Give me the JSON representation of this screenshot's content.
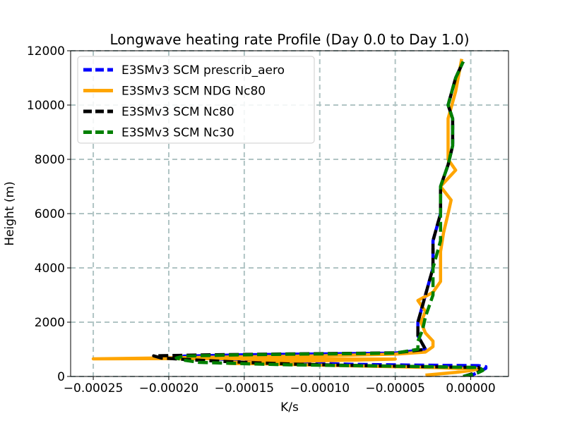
{
  "chart_data": {
    "type": "line",
    "title": "Longwave heating rate Profile (Day 0.0 to Day 1.0)",
    "xlabel": "K/s",
    "ylabel": "Height (m)",
    "xlim": [
      -0.000265,
      2.5e-05
    ],
    "ylim": [
      0,
      12000
    ],
    "xticks": [
      {
        "value": -0.00025,
        "label": "−0.00025"
      },
      {
        "value": -0.0002,
        "label": "−0.00020"
      },
      {
        "value": -0.00015,
        "label": "−0.00015"
      },
      {
        "value": -0.0001,
        "label": "−0.00010"
      },
      {
        "value": -5e-05,
        "label": "−0.00005"
      },
      {
        "value": 0.0,
        "label": "0.00000"
      }
    ],
    "yticks": [
      {
        "value": 0,
        "label": "0"
      },
      {
        "value": 2000,
        "label": "2000"
      },
      {
        "value": 4000,
        "label": "4000"
      },
      {
        "value": 6000,
        "label": "6000"
      },
      {
        "value": 8000,
        "label": "8000"
      },
      {
        "value": 10000,
        "label": "10000"
      },
      {
        "value": 12000,
        "label": "12000"
      }
    ],
    "grid": true,
    "legend_position": "top-left",
    "series": [
      {
        "name": "E3SMv3 SCM prescrib_aero",
        "color": "#0000ff",
        "dash": "dashed",
        "x": [
          -3e-06,
          2e-06,
          5e-06,
          8e-06,
          1e-05,
          1e-05,
          5e-06,
          -4e-05,
          -8e-05,
          -0.00012,
          -0.00015,
          -0.00017,
          -0.00019,
          -0.00019,
          -0.00015,
          -0.0001,
          -5e-05,
          -3e-05,
          -3.5e-05,
          -3.5e-05,
          -3e-05,
          -2.5e-05,
          -2.5e-05,
          -2e-05,
          -2e-05,
          -2e-05,
          -1.5e-05,
          -1.2e-05,
          -1.2e-05,
          -1.5e-05,
          -1e-05,
          -5e-06
        ],
        "y": [
          0,
          80,
          160,
          240,
          300,
          360,
          400,
          420,
          450,
          520,
          600,
          650,
          700,
          750,
          800,
          830,
          860,
          1000,
          1500,
          2000,
          3000,
          4000,
          5000,
          6000,
          6500,
          7000,
          7800,
          8500,
          9500,
          10000,
          11000,
          11600
        ]
      },
      {
        "name": "E3SMv3 SCM NDG Nc80",
        "color": "#ffa500",
        "dash": "solid",
        "x": [
          -3e-05,
          -1e-05,
          0.0,
          5e-06,
          -2e-05,
          -6e-05,
          -0.00011,
          -0.00014,
          -0.00016,
          -0.00016,
          -0.00012,
          -8e-05,
          -5e-05,
          -0.00018,
          -0.00025,
          -0.0001,
          -5e-05,
          -3e-05,
          -2.5e-05,
          -2.5e-05,
          -3e-05,
          -3.3e-05,
          -3e-05,
          -3.5e-05,
          -2.5e-05,
          -2e-05,
          -2e-05,
          -2e-05,
          -1.8e-05,
          -1.5e-05,
          -1.3e-05,
          -2e-05,
          -1e-05,
          -1.5e-05,
          -1.5e-05,
          -1.5e-05,
          -1e-05,
          -6e-06
        ],
        "y": [
          50,
          150,
          220,
          270,
          320,
          370,
          430,
          470,
          480,
          520,
          560,
          600,
          640,
          660,
          650,
          760,
          820,
          900,
          1100,
          1300,
          1600,
          2000,
          2400,
          2800,
          3100,
          3500,
          4200,
          4600,
          5300,
          6000,
          6500,
          7000,
          7600,
          8000,
          8500,
          9500,
          10500,
          11700
        ]
      },
      {
        "name": "E3SMv3 SCM Nc80",
        "color": "#000000",
        "dash": "dashed",
        "x": [
          -5e-06,
          0.0,
          5e-06,
          7e-06,
          5e-06,
          -5e-05,
          -9e-05,
          -0.00012,
          -0.00015,
          -0.00018,
          -0.000205,
          -0.00021,
          -0.00017,
          -0.00012,
          -8e-05,
          -5e-05,
          -3e-05,
          -3.5e-05,
          -3.5e-05,
          -3e-05,
          -2.5e-05,
          -2.5e-05,
          -2e-05,
          -2e-05,
          -2e-05,
          -1.5e-05,
          -1.2e-05,
          -1.2e-05,
          -1.5e-05,
          -1e-05,
          -5e-06
        ],
        "y": [
          0,
          80,
          160,
          240,
          330,
          380,
          420,
          460,
          520,
          600,
          680,
          760,
          800,
          830,
          850,
          870,
          1000,
          1500,
          2000,
          3000,
          4000,
          5000,
          6000,
          6500,
          7000,
          7800,
          8500,
          9500,
          10000,
          11000,
          11600
        ]
      },
      {
        "name": "E3SMv3 SCM Nc30",
        "color": "#008000",
        "dash": "dashed",
        "x": [
          -5e-06,
          0.0,
          5e-06,
          8e-06,
          7e-06,
          5e-06,
          -4e-05,
          -8e-05,
          -0.00012,
          -0.00015,
          -0.00018,
          -0.00019,
          -0.000195,
          -0.00019,
          -0.00016,
          -0.00012,
          -8e-05,
          -5e-05,
          -3.5e-05,
          -3.5e-05,
          -3.2e-05,
          -3e-05,
          -2.5e-05,
          -2.5e-05,
          -2e-05,
          -2e-05,
          -2e-05,
          -1.5e-05,
          -1.2e-05,
          -1.2e-05,
          -1.5e-05,
          -1e-05,
          -5e-06
        ],
        "y": [
          0,
          60,
          140,
          220,
          280,
          330,
          370,
          400,
          430,
          470,
          520,
          600,
          680,
          750,
          790,
          820,
          840,
          860,
          1000,
          1300,
          1700,
          2200,
          3000,
          4000,
          5000,
          6000,
          7000,
          7800,
          8500,
          9500,
          10000,
          11000,
          11600
        ]
      }
    ]
  }
}
